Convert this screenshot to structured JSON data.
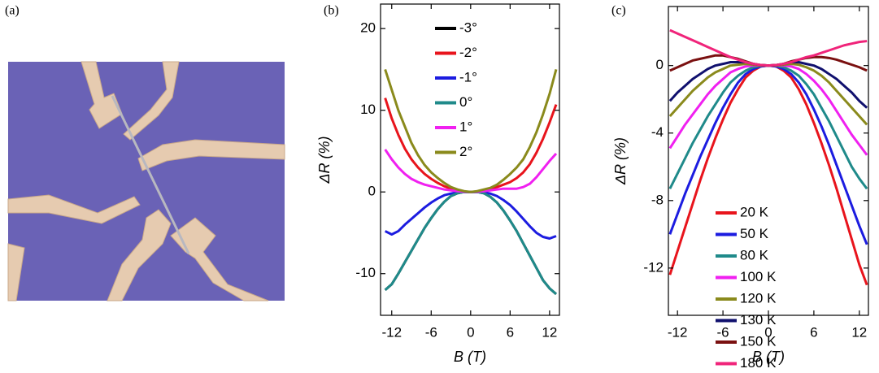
{
  "image_panel": {
    "label": "(a)"
  },
  "chart_data": [
    {
      "type": "line",
      "panel_label": "(b)",
      "xlabel": "B (T)",
      "ylabel": "ΔR (%)",
      "xlim": [
        -13.7,
        13.5
      ],
      "ylim": [
        -15.1,
        23
      ],
      "xticks": [
        -12,
        -6,
        0,
        6,
        12
      ],
      "yticks": [
        -10,
        0,
        10,
        20
      ],
      "legend": "upper center",
      "x": [
        -13,
        -12,
        -11,
        -10,
        -9,
        -8,
        -7,
        -6,
        -5,
        -4,
        -3,
        -2,
        -1,
        0,
        1,
        2,
        3,
        4,
        5,
        6,
        7,
        8,
        9,
        10,
        11,
        12,
        13
      ],
      "series": [
        {
          "name": "-3°",
          "color": "#000000",
          "values": [
            -12,
            -11.3,
            -10,
            -8.6,
            -7.2,
            -5.8,
            -4.4,
            -3.2,
            -2.1,
            -1.2,
            -0.5,
            -0.15,
            0,
            0,
            0,
            -0.15,
            -0.6,
            -1.3,
            -2.3,
            -3.5,
            -4.8,
            -6.3,
            -7.8,
            -9.3,
            -10.8,
            -11.8,
            -12.5
          ]
        },
        {
          "name": "-2°",
          "color": "#e8141c",
          "values": [
            11.5,
            9,
            7,
            5.3,
            4,
            3,
            2.2,
            1.6,
            1.1,
            0.7,
            0.4,
            0.2,
            0.05,
            0,
            0.05,
            0.2,
            0.4,
            0.6,
            0.9,
            1.2,
            1.7,
            2.4,
            3.4,
            4.8,
            6.5,
            8.5,
            10.7
          ]
        },
        {
          "name": "-1°",
          "color": "#1c1ce0",
          "values": [
            -4.8,
            -5.2,
            -4.8,
            -4,
            -3.3,
            -2.6,
            -1.9,
            -1.3,
            -0.8,
            -0.4,
            -0.2,
            -0.05,
            0,
            0,
            0,
            -0.05,
            -0.2,
            -0.5,
            -1,
            -1.6,
            -2.4,
            -3.3,
            -4.2,
            -5,
            -5.5,
            -5.7,
            -5.4
          ]
        },
        {
          "name": "0°",
          "color": "#1f8a8a",
          "values": [
            -12,
            -11.3,
            -10,
            -8.6,
            -7.2,
            -5.8,
            -4.4,
            -3.2,
            -2.1,
            -1.2,
            -0.5,
            -0.15,
            0,
            0,
            0,
            -0.15,
            -0.6,
            -1.3,
            -2.3,
            -3.5,
            -4.8,
            -6.3,
            -7.8,
            -9.3,
            -10.8,
            -11.8,
            -12.5
          ]
        },
        {
          "name": "1°",
          "color": "#f020f0",
          "values": [
            5.2,
            4,
            3,
            2.2,
            1.6,
            1.2,
            0.9,
            0.7,
            0.5,
            0.3,
            0.2,
            0.1,
            0.03,
            0,
            0.03,
            0.1,
            0.2,
            0.3,
            0.4,
            0.4,
            0.4,
            0.6,
            1,
            1.8,
            2.8,
            3.8,
            4.7
          ]
        },
        {
          "name": "2°",
          "color": "#8a8a1c",
          "values": [
            15,
            12.5,
            10,
            8,
            6,
            4.5,
            3.3,
            2.4,
            1.7,
            1.1,
            0.6,
            0.3,
            0.1,
            0,
            0.1,
            0.3,
            0.5,
            0.9,
            1.5,
            2.2,
            3,
            4,
            5.5,
            7.3,
            9.5,
            12,
            15
          ]
        }
      ]
    },
    {
      "type": "line",
      "panel_label": "(c)",
      "xlabel": "B (T)",
      "ylabel": "ΔR (%)",
      "xlim": [
        -13.2,
        13.2
      ],
      "ylim": [
        -14.8,
        3.5
      ],
      "xticks": [
        -12,
        -6,
        0,
        6,
        12
      ],
      "yticks": [
        -12,
        -8,
        -4,
        0
      ],
      "legend": "lower center",
      "x": [
        -13,
        -12,
        -11,
        -10,
        -9,
        -8,
        -7,
        -6,
        -5,
        -4,
        -3,
        -2,
        -1,
        0,
        1,
        2,
        3,
        4,
        5,
        6,
        7,
        8,
        9,
        10,
        11,
        12,
        13
      ],
      "series": [
        {
          "name": "20 K",
          "color": "#e8141c",
          "values": [
            -12.4,
            -11,
            -9.6,
            -8.2,
            -6.8,
            -5.5,
            -4.3,
            -3.2,
            -2.2,
            -1.4,
            -0.7,
            -0.3,
            -0.05,
            0,
            -0.05,
            -0.3,
            -0.7,
            -1.4,
            -2.3,
            -3.4,
            -4.6,
            -5.9,
            -7.3,
            -8.8,
            -10.3,
            -11.8,
            -13
          ]
        },
        {
          "name": "50 K",
          "color": "#1c1ce0",
          "values": [
            -10,
            -8.8,
            -7.6,
            -6.5,
            -5.4,
            -4.4,
            -3.4,
            -2.5,
            -1.7,
            -1,
            -0.5,
            -0.2,
            -0.05,
            0,
            -0.05,
            -0.2,
            -0.5,
            -1,
            -1.7,
            -2.6,
            -3.6,
            -4.7,
            -5.9,
            -7.1,
            -8.3,
            -9.5,
            -10.6
          ]
        },
        {
          "name": "80 K",
          "color": "#1f8a8a",
          "values": [
            -7.3,
            -6.4,
            -5.5,
            -4.6,
            -3.8,
            -3,
            -2.3,
            -1.6,
            -1,
            -0.6,
            -0.3,
            -0.1,
            0,
            0,
            0,
            -0.1,
            -0.3,
            -0.6,
            -1.1,
            -1.7,
            -2.5,
            -3.3,
            -4.2,
            -5.1,
            -6,
            -6.7,
            -7.3
          ]
        },
        {
          "name": "100 K",
          "color": "#f020f0",
          "values": [
            -4.9,
            -4.2,
            -3.5,
            -2.9,
            -2.3,
            -1.7,
            -1.2,
            -0.8,
            -0.4,
            -0.2,
            -0.05,
            0,
            0,
            0,
            0,
            0,
            -0.05,
            -0.2,
            -0.5,
            -0.9,
            -1.4,
            -2,
            -2.7,
            -3.4,
            -4.1,
            -4.7,
            -5.3
          ]
        },
        {
          "name": "120 K",
          "color": "#8a8a1c",
          "values": [
            -3,
            -2.5,
            -2,
            -1.5,
            -1.1,
            -0.7,
            -0.4,
            -0.2,
            0,
            0.05,
            0.1,
            0.05,
            0,
            0,
            0,
            0.05,
            0.1,
            0.05,
            -0.1,
            -0.3,
            -0.6,
            -1,
            -1.5,
            -2,
            -2.5,
            -3,
            -3.5
          ]
        },
        {
          "name": "130 K",
          "color": "#10106e",
          "values": [
            -2.1,
            -1.6,
            -1.2,
            -0.8,
            -0.5,
            -0.2,
            0,
            0.1,
            0.2,
            0.2,
            0.2,
            0.1,
            0.03,
            0,
            0.03,
            0.1,
            0.2,
            0.2,
            0.1,
            0,
            -0.2,
            -0.5,
            -0.8,
            -1.2,
            -1.6,
            -2.1,
            -2.5
          ]
        },
        {
          "name": "150 K",
          "color": "#7a1010",
          "values": [
            -0.3,
            -0.1,
            0.1,
            0.3,
            0.4,
            0.5,
            0.6,
            0.6,
            0.5,
            0.4,
            0.25,
            0.1,
            0.03,
            0,
            0.03,
            0.1,
            0.25,
            0.35,
            0.45,
            0.5,
            0.5,
            0.45,
            0.35,
            0.2,
            0.05,
            -0.1,
            -0.3
          ]
        },
        {
          "name": "180 K",
          "color": "#f0247a",
          "values": [
            2.1,
            1.9,
            1.7,
            1.5,
            1.3,
            1.1,
            0.9,
            0.7,
            0.5,
            0.35,
            0.2,
            0.1,
            0.03,
            0,
            0.03,
            0.1,
            0.2,
            0.35,
            0.5,
            0.6,
            0.75,
            0.9,
            1.05,
            1.2,
            1.3,
            1.4,
            1.45
          ]
        }
      ]
    }
  ]
}
